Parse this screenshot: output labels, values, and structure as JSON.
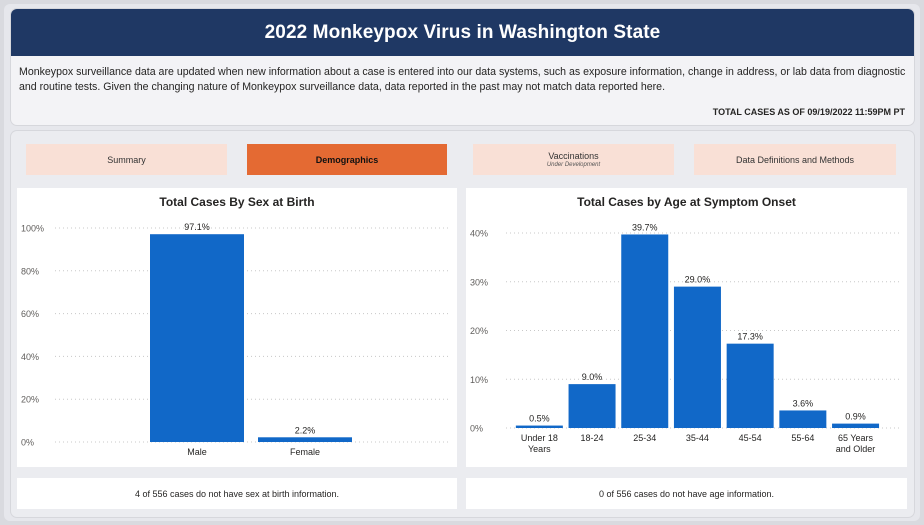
{
  "header": {
    "title": "2022 Monkeypox Virus in Washington State",
    "description": "Monkeypox surveillance data are updated when new information about a case is entered into our data systems, such as exposure information, change in address, or lab data from diagnostic and routine tests. Given the changing nature of Monkeypox surveillance data, data reported in the past may not match data reported here.",
    "total_cases": "TOTAL CASES AS OF 09/19/2022 11:59PM PT"
  },
  "tabs": [
    {
      "label": "Summary",
      "sub": ""
    },
    {
      "label": "Demographics",
      "sub": ""
    },
    {
      "label": "Vaccinations",
      "sub": "Under Development"
    },
    {
      "label": "Data Definitions and Methods",
      "sub": ""
    }
  ],
  "colors": {
    "header_bg": "#1f3864",
    "tab_bg": "#f9e0d6",
    "tab_active": "#e46a33",
    "bar": "#1168c8"
  },
  "footnotes": {
    "sex": "4 of 556 cases do not have sex at birth information.",
    "age": "0 of 556 cases do not have age information."
  },
  "chart_data": [
    {
      "type": "bar",
      "title": "Total Cases By Sex at Birth",
      "categories": [
        "Male",
        "Female"
      ],
      "values": [
        97.1,
        2.2
      ],
      "data_labels": [
        "97.1%",
        "2.2%"
      ],
      "yticks": [
        "0%",
        "20%",
        "40%",
        "60%",
        "80%",
        "100%"
      ],
      "ylim": [
        0,
        100
      ],
      "grid": true
    },
    {
      "type": "bar",
      "title": "Total Cases by Age at Symptom Onset",
      "categories": [
        [
          "Under 18",
          "Years"
        ],
        [
          "18-24"
        ],
        [
          "25-34"
        ],
        [
          "35-44"
        ],
        [
          "45-54"
        ],
        [
          "55-64"
        ],
        [
          "65 Years",
          "and Older"
        ]
      ],
      "values": [
        0.5,
        9.0,
        39.7,
        29.0,
        17.3,
        3.6,
        0.9
      ],
      "data_labels": [
        "0.5%",
        "9.0%",
        "39.7%",
        "29.0%",
        "17.3%",
        "3.6%",
        "0.9%"
      ],
      "yticks": [
        "0%",
        "10%",
        "20%",
        "30%",
        "40%"
      ],
      "ylim": [
        0,
        40
      ],
      "grid": true
    }
  ]
}
